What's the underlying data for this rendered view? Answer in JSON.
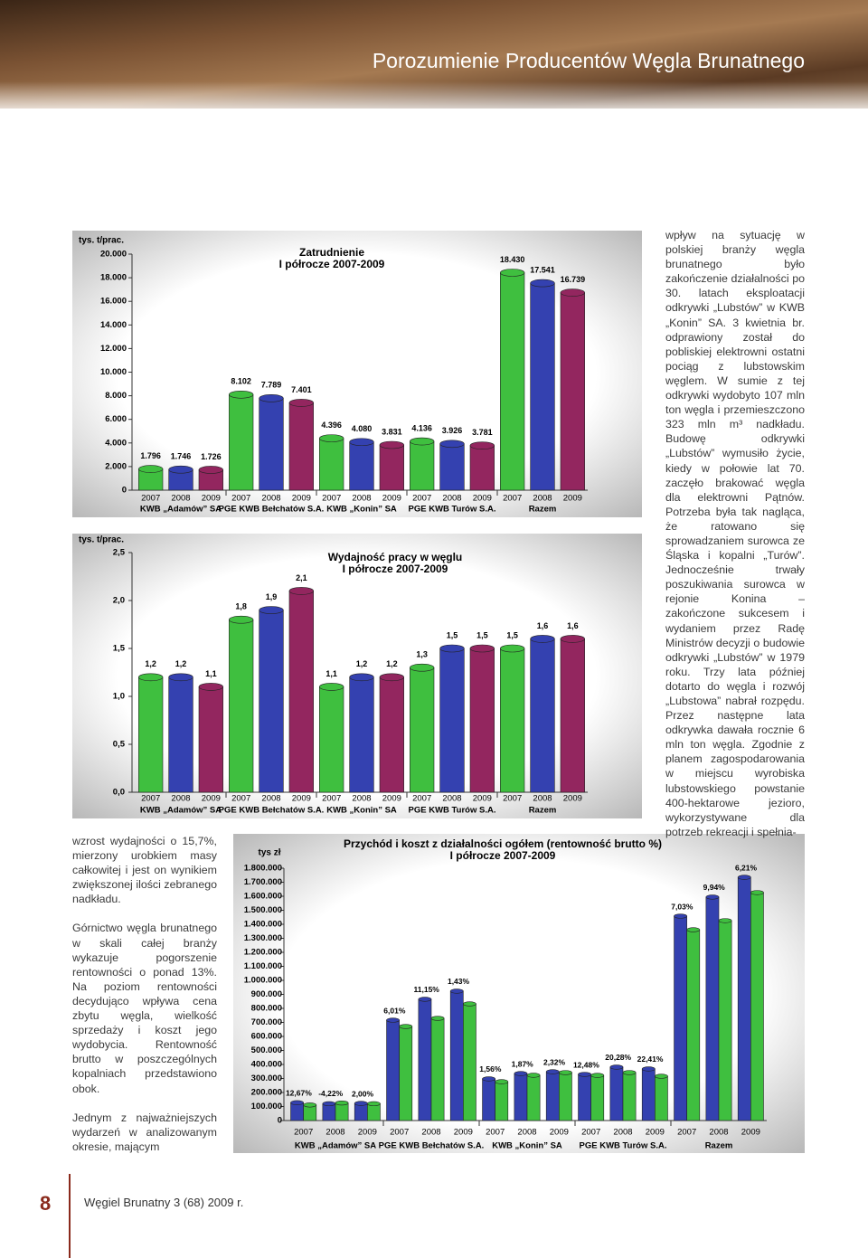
{
  "header": {
    "title": "Porozumienie Producentów Węgla Brunatnego"
  },
  "text": {
    "right_column": "wpływ na sytuację w polskiej branży węgla brunatnego było zakończenie działalności po 30. latach eksploatacji odkrywki „Lubstów” w KWB „Konin” SA. 3 kwietnia br. odprawiony został do pobliskiej elektrowni ostatni pociąg z lubstowskim węglem. W sumie z tej odkrywki wydobyto 107 mln ton węgla i przemieszczono 323 mln m³ nadkładu. Budowę odkrywki „Lubstów” wymusiło życie, kiedy w połowie lat 70. zaczęło brakować węgla dla elektrowni Pątnów. Potrzeba była tak nagląca, że ratowano się sprowadzaniem surowca ze Śląska i kopalni „Turów”. Jednocześnie trwały poszukiwania surowca w rejonie Konina – zakończone sukcesem i wydaniem przez Radę Ministrów decyzji o budowie odkrywki „Lubstów” w 1979 roku. Trzy lata później dotarto do węgla i rozwój „Lubstowa” nabrał rozpędu. Przez następne lata odkrywka dawała rocznie 6 mln ton węgla. Zgodnie z planem zagospodarowania w miejscu wyrobiska lubstowskiego powstanie 400-hektarowe jezioro, wykorzystywane dla potrzeb rekreacji i spełnia-",
    "left_paragraphs": [
      "wzrost wydajności o 15,7%, mierzony urobkiem masy całkowitej i jest on wynikiem zwiększonej ilości zebranego nadkładu.",
      "Górnictwo węgla brunatnego w skali całej branży wykazuje pogorszenie rentowności o ponad 13%. Na poziom rentowności decydująco wpływa cena zbytu węgla, wielkość sprzedaży i koszt jego wydobycia. Rentowność brutto w poszczególnych kopalniach przedstawiono obok.",
      "Jednym z najważniejszych wydarzeń w analizowanym okresie, mającym"
    ]
  },
  "footer": {
    "page": "8",
    "publication": "Węgiel Brunatny 3 (68) 2009 r."
  },
  "chart_data": [
    {
      "type": "bar",
      "title": "Zatrudnienie",
      "subtitle": "I półrocze 2007-2009",
      "y_label": "tys. t/prac.",
      "groups": [
        "KWB „Adamów” SA",
        "PGE KWB Bełchatów S.A.",
        "KWB „Konin” SA",
        "PGE KWB Turów S.A.",
        "Razem"
      ],
      "categories": [
        "2007",
        "2008",
        "2009",
        "2007",
        "2008",
        "2009",
        "2007",
        "2008",
        "2009",
        "2007",
        "2008",
        "2009",
        "2007",
        "2008",
        "2009"
      ],
      "values": [
        1796,
        1746,
        1726,
        8102,
        7789,
        7401,
        4396,
        4080,
        3831,
        4136,
        3926,
        3781,
        18430,
        17541,
        16739
      ],
      "value_labels": [
        "1.796",
        "1.746",
        "1.726",
        "8.102",
        "7.789",
        "7.401",
        "4.396",
        "4.080",
        "3.831",
        "4.136",
        "3.926",
        "3.781",
        "18.430",
        "17.541",
        "16.739"
      ],
      "colors": [
        "#3fbf3f",
        "#3441b0",
        "#93265f"
      ],
      "ylim": [
        0,
        20000
      ],
      "yticks": [
        0,
        {
          "value": 2000,
          "label": "2.000"
        },
        {
          "value": 4000,
          "label": "4.000"
        },
        {
          "value": 6000,
          "label": "6.000"
        },
        {
          "value": 8000,
          "label": "8.000"
        },
        {
          "value": 10000,
          "label": "10.000"
        },
        {
          "value": 12000,
          "label": "12.000"
        },
        {
          "value": 14000,
          "label": "14.000"
        },
        {
          "value": 16000,
          "label": "16.000"
        },
        {
          "value": 18000,
          "label": "18.000"
        },
        {
          "value": 20000,
          "label": "20.000"
        }
      ]
    },
    {
      "type": "bar",
      "title": "Wydajność pracy w węglu",
      "subtitle": "I półrocze 2007-2009",
      "y_label": "tys. t/prac.",
      "groups": [
        "KWB „Adamów” SA",
        "PGE KWB Bełchatów S.A.",
        "KWB „Konin” SA",
        "PGE KWB Turów S.A.",
        "Razem"
      ],
      "categories": [
        "2007",
        "2008",
        "2009",
        "2007",
        "2008",
        "2009",
        "2007",
        "2008",
        "2009",
        "2007",
        "2008",
        "2009",
        "2007",
        "2008",
        "2009"
      ],
      "values": [
        1.2,
        1.2,
        1.1,
        1.8,
        1.9,
        2.1,
        1.1,
        1.2,
        1.2,
        1.3,
        1.5,
        1.5,
        1.5,
        1.6,
        1.6
      ],
      "value_labels": [
        "1,2",
        "1,2",
        "1,1",
        "1,8",
        "1,9",
        "2,1",
        "1,1",
        "1,2",
        "1,2",
        "1,3",
        "1,5",
        "1,5",
        "1,5",
        "1,6",
        "1,6"
      ],
      "colors": [
        "#3fbf3f",
        "#3441b0",
        "#93265f"
      ],
      "ylim": [
        0,
        2.5
      ],
      "yticks": [
        {
          "value": 0,
          "label": "0,0"
        },
        {
          "value": 0.5,
          "label": "0,5"
        },
        {
          "value": 1,
          "label": "1,0"
        },
        {
          "value": 1.5,
          "label": "1,5"
        },
        {
          "value": 2,
          "label": "2,0"
        },
        {
          "value": 2.5,
          "label": "2,5"
        }
      ]
    },
    {
      "type": "bar",
      "title": "Przychód i koszt z działalności ogółem (rentowność brutto %)",
      "subtitle": "I półrocze 2007-2009",
      "y_label": "tys zł",
      "groups": [
        "KWB „Adamów” SA",
        "PGE KWB Bełchatów S.A.",
        "KWB „Konin” SA",
        "PGE KWB Turów S.A.",
        "Razem"
      ],
      "categories": [
        "2007",
        "2008",
        "2009",
        "2007",
        "2008",
        "2009",
        "2007",
        "2008",
        "2009",
        "2007",
        "2008",
        "2009",
        "2007",
        "2008",
        "2009"
      ],
      "series": [
        {
          "color": "#3441b0",
          "values": [
            127000,
            120000,
            122000,
            716000,
            865000,
            923000,
            297000,
            335000,
            348000,
            329000,
            381000,
            368000,
            1458000,
            1594000,
            1735000
          ]
        },
        {
          "color": "#3fbf3f",
          "values": [
            111000,
            125000,
            120000,
            671000,
            729000,
            832000,
            277000,
            323000,
            342000,
            322000,
            342000,
            316000,
            1361000,
            1426000,
            1626000
          ]
        }
      ],
      "annotations": [
        "12,67%",
        "-4,22%",
        "2,00%",
        "6,01%",
        "11,15%",
        "1,43%",
        "1,56%",
        "1,87%",
        "2,32%",
        "12,48%",
        "20,28%",
        "22,41%",
        "7,03%",
        "9,94%",
        "6,21%"
      ],
      "ylim": [
        0,
        1800000
      ],
      "yticks": [
        0,
        {
          "value": 100000,
          "label": "100.000"
        },
        {
          "value": 200000,
          "label": "200.000"
        },
        {
          "value": 300000,
          "label": "300.000"
        },
        {
          "value": 400000,
          "label": "400.000"
        },
        {
          "value": 500000,
          "label": "500.000"
        },
        {
          "value": 600000,
          "label": "600.000"
        },
        {
          "value": 700000,
          "label": "700.000"
        },
        {
          "value": 800000,
          "label": "800.000"
        },
        {
          "value": 900000,
          "label": "900.000"
        },
        {
          "value": 1000000,
          "label": "1.000.000"
        },
        {
          "value": 1100000,
          "label": "1.100.000"
        },
        {
          "value": 1200000,
          "label": "1.200.000"
        },
        {
          "value": 1300000,
          "label": "1.300.000"
        },
        {
          "value": 1400000,
          "label": "1.400.000"
        },
        {
          "value": 1500000,
          "label": "1.500.000"
        },
        {
          "value": 1600000,
          "label": "1.600.000"
        },
        {
          "value": 1700000,
          "label": "1.700.000"
        },
        {
          "value": 1800000,
          "label": "1.800.000"
        }
      ]
    }
  ]
}
